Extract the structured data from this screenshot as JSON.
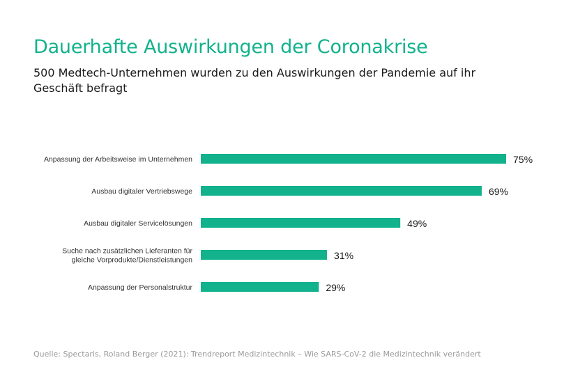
{
  "title": "Dauerhafte Auswirkungen der Coronakrise",
  "subtitle": "500 Medtech-Unternehmen wurden zu den Auswirkungen der Pandemie auf ihr Geschäft befragt",
  "source": "Quelle: Spectaris, Roland Berger (2021): Trendreport Medizintechnik – Wie SARS-CoV-2 die Medizintechnik verändert",
  "colors": {
    "accent": "#12b28c",
    "bar": "#12b28c",
    "text": "#1a1a1a"
  },
  "chart_data": {
    "type": "bar",
    "orientation": "horizontal",
    "categories": [
      [
        "Anpassung der Arbeitsweise im Unternehmen"
      ],
      [
        "Ausbau digitaler Vertriebswege"
      ],
      [
        "Ausbau digitaler Servicelösungen"
      ],
      [
        "Suche nach zusätzlichen Lieferanten für",
        "gleiche Vorprodukte/Dienstleistungen"
      ],
      [
        "Anpassung der Personalstruktur"
      ]
    ],
    "values": [
      75,
      69,
      49,
      31,
      29
    ],
    "value_labels": [
      "75%",
      "69%",
      "49%",
      "31%",
      "29%"
    ],
    "unit": "%",
    "xlim": [
      0,
      100
    ],
    "grid": false,
    "legend": "none"
  }
}
